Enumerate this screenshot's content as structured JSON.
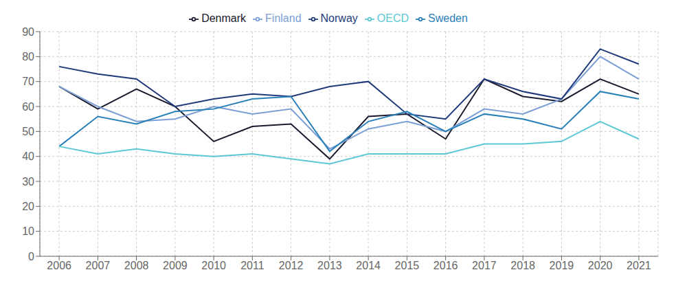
{
  "chart_data": {
    "type": "line",
    "x": [
      2006,
      2007,
      2008,
      2009,
      2010,
      2011,
      2012,
      2013,
      2014,
      2015,
      2016,
      2017,
      2018,
      2019,
      2020,
      2021
    ],
    "series": [
      {
        "name": "Denmark",
        "color": "#1a1a2e",
        "values": [
          68,
          59,
          67,
          60,
          46,
          52,
          53,
          39,
          56,
          57,
          47,
          71,
          64,
          62,
          71,
          65
        ]
      },
      {
        "name": "Finland",
        "color": "#7b9fd4",
        "values": [
          68,
          60,
          54,
          55,
          60,
          57,
          59,
          43,
          51,
          54,
          50,
          59,
          57,
          63,
          80,
          71
        ]
      },
      {
        "name": "Norway",
        "color": "#1f3a7a",
        "values": [
          76,
          73,
          71,
          60,
          63,
          65,
          64,
          68,
          70,
          57,
          55,
          71,
          66,
          63,
          83,
          77
        ]
      },
      {
        "name": "Sweden",
        "color": "#2980b9",
        "values": [
          44,
          56,
          53,
          58,
          59,
          63,
          64,
          42,
          54,
          58,
          50,
          57,
          55,
          51,
          66,
          63
        ]
      },
      {
        "name": "OECD",
        "color": "#5bc8d4",
        "values": [
          44,
          41,
          43,
          41,
          40,
          41,
          39,
          37,
          41,
          41,
          41,
          45,
          45,
          46,
          54,
          47
        ]
      }
    ],
    "xlim": [
      2005.5,
      2021.5
    ],
    "xticks": [
      2006,
      2007,
      2008,
      2009,
      2010,
      2011,
      2012,
      2013,
      2014,
      2015,
      2016,
      2017,
      2018,
      2019,
      2020,
      2021
    ],
    "ylim": [
      0,
      90
    ],
    "yticks": [
      0,
      10,
      20,
      30,
      40,
      50,
      60,
      70,
      80,
      90
    ],
    "grid": true,
    "legend": "top"
  }
}
